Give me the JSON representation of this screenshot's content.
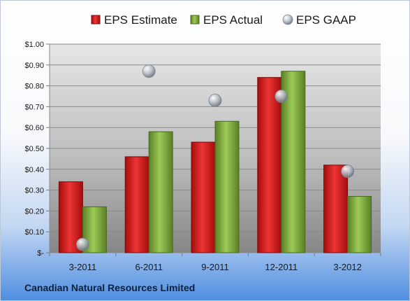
{
  "chart_data": {
    "type": "bar",
    "title": "",
    "xlabel": "",
    "ylabel": "",
    "categories": [
      "3-2011",
      "6-2011",
      "9-2011",
      "12-2011",
      "3-2012"
    ],
    "series": [
      {
        "name": "EPS Estimate",
        "type": "bar",
        "color": "#d81e1e",
        "values": [
          0.34,
          0.46,
          0.53,
          0.84,
          0.42
        ]
      },
      {
        "name": "EPS Actual",
        "type": "bar",
        "color": "#7fb03a",
        "values": [
          0.22,
          0.58,
          0.63,
          0.87,
          0.27
        ]
      },
      {
        "name": "EPS GAAP",
        "type": "scatter",
        "color": "#a9b3be",
        "values": [
          0.04,
          0.87,
          0.73,
          0.75,
          0.39
        ]
      }
    ],
    "ylim": [
      0,
      1.0
    ],
    "yticks": [
      0,
      0.1,
      0.2,
      0.3,
      0.4,
      0.5,
      0.6,
      0.7,
      0.8,
      0.9,
      1.0
    ],
    "ytick_labels": [
      "$-",
      "$0.10",
      "$0.20",
      "$0.30",
      "$0.40",
      "$0.50",
      "$0.60",
      "$0.70",
      "$0.80",
      "$0.90",
      "$1.00"
    ],
    "grid": true,
    "legend_position": "top"
  },
  "footer": {
    "company": "Canadian Natural Resources Limited"
  }
}
